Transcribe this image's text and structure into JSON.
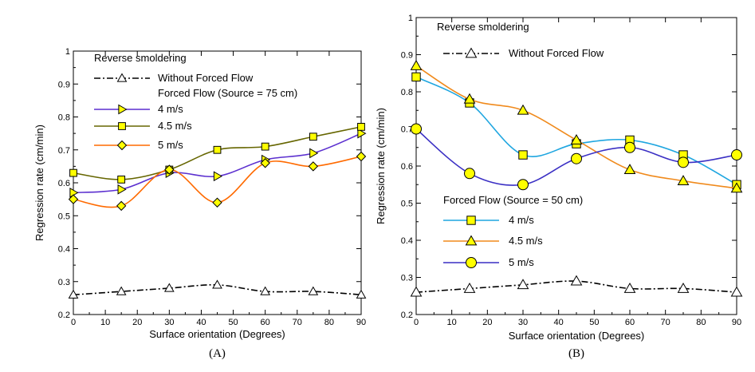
{
  "chart_data": [
    {
      "type": "line",
      "caption": "(A)",
      "xlabel": "Surface orientation (Degrees)",
      "ylabel": "Regression rate (cm/min)",
      "xlim": [
        0,
        90
      ],
      "ylim": [
        0.2,
        1.0
      ],
      "xticks": [
        0,
        10,
        20,
        30,
        40,
        50,
        60,
        70,
        80,
        90
      ],
      "yticks": [
        0.2,
        0.3,
        0.4,
        0.5,
        0.6,
        0.7,
        0.8,
        0.9,
        1
      ],
      "grid": false,
      "legend_title": "Reverse smoldering",
      "legend_subtitle": "Forced Flow (Source = 75 cm)",
      "series": [
        {
          "name": "Without Forced Flow",
          "color": "#000000",
          "dash": "dashdot",
          "marker": "triangle-up",
          "x": [
            0,
            15,
            30,
            45,
            60,
            75,
            90
          ],
          "values": [
            0.26,
            0.27,
            0.28,
            0.29,
            0.27,
            0.27,
            0.26
          ]
        },
        {
          "name": "4 m/s",
          "color": "#5b2fcf",
          "marker": "triangle-right",
          "marker_fill": "#ffff00",
          "x": [
            0,
            15,
            30,
            45,
            60,
            75,
            90
          ],
          "values": [
            0.57,
            0.58,
            0.63,
            0.62,
            0.67,
            0.69,
            0.75
          ]
        },
        {
          "name": "4.5 m/s",
          "color": "#666600",
          "marker": "square",
          "marker_fill": "#ffff00",
          "x": [
            0,
            15,
            30,
            45,
            60,
            75,
            90
          ],
          "values": [
            0.63,
            0.61,
            0.64,
            0.7,
            0.71,
            0.74,
            0.77
          ]
        },
        {
          "name": "5 m/s",
          "color": "#ff6a00",
          "marker": "diamond",
          "marker_fill": "#ffff00",
          "x": [
            0,
            15,
            30,
            45,
            60,
            75,
            90
          ],
          "values": [
            0.55,
            0.53,
            0.64,
            0.54,
            0.66,
            0.65,
            0.68
          ]
        }
      ]
    },
    {
      "type": "line",
      "caption": "(B)",
      "xlabel": "Surface orientation (Degrees)",
      "ylabel": "Regression rate (cm/min)",
      "xlim": [
        0,
        90
      ],
      "ylim": [
        0.2,
        1.0
      ],
      "xticks": [
        0,
        10,
        20,
        30,
        40,
        50,
        60,
        70,
        80,
        90
      ],
      "yticks": [
        0.2,
        0.3,
        0.4,
        0.5,
        0.6,
        0.7,
        0.8,
        0.9,
        1
      ],
      "grid": false,
      "legend_title": "Reverse smoldering",
      "legend_subtitle": "Forced Flow (Source = 50 cm)",
      "series": [
        {
          "name": "Without Forced Flow",
          "color": "#000000",
          "dash": "dashdot",
          "marker": "triangle-up",
          "x": [
            0,
            15,
            30,
            45,
            60,
            75,
            90
          ],
          "values": [
            0.26,
            0.27,
            0.28,
            0.29,
            0.27,
            0.27,
            0.26
          ]
        },
        {
          "name": "4 m/s",
          "color": "#1fa6e0",
          "marker": "square",
          "marker_fill": "#ffff00",
          "x": [
            0,
            15,
            30,
            45,
            60,
            75,
            90
          ],
          "values": [
            0.84,
            0.77,
            0.63,
            0.66,
            0.67,
            0.63,
            0.55
          ]
        },
        {
          "name": "4.5 m/s",
          "color": "#f08a1c",
          "marker": "triangle-up",
          "marker_fill": "#ffff00",
          "x": [
            0,
            15,
            30,
            45,
            60,
            75,
            90
          ],
          "values": [
            0.87,
            0.78,
            0.75,
            0.67,
            0.59,
            0.56,
            0.54
          ]
        },
        {
          "name": "5 m/s",
          "color": "#3a2fc4",
          "marker": "circle",
          "marker_fill": "#ffff00",
          "x": [
            0,
            15,
            30,
            45,
            60,
            75,
            90
          ],
          "values": [
            0.7,
            0.58,
            0.55,
            0.62,
            0.65,
            0.61,
            0.63
          ]
        }
      ]
    }
  ]
}
